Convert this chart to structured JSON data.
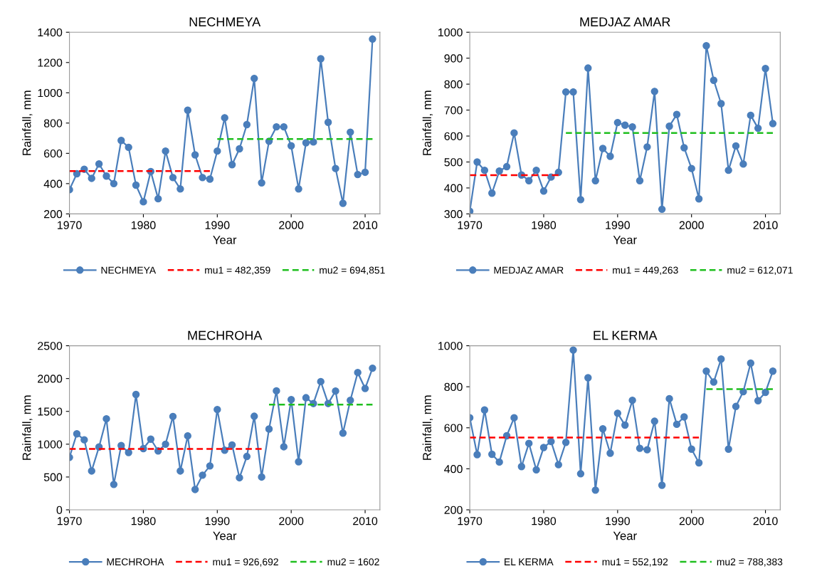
{
  "chart_data": [
    {
      "type": "line",
      "title": "NECHMEYA",
      "xlabel": "Year",
      "ylabel": "Rainfall, mm",
      "xlim": [
        1970,
        2012
      ],
      "xticks": [
        1970,
        1980,
        1990,
        2000,
        2010
      ],
      "ylim": [
        200,
        1400
      ],
      "yticks": [
        200,
        400,
        600,
        800,
        1000,
        1200,
        1400
      ],
      "grid": false,
      "legend": "bottom",
      "x": [
        1970,
        1971,
        1972,
        1973,
        1974,
        1975,
        1976,
        1977,
        1978,
        1979,
        1980,
        1981,
        1982,
        1983,
        1984,
        1985,
        1986,
        1987,
        1988,
        1989,
        1990,
        1991,
        1992,
        1993,
        1994,
        1995,
        1996,
        1997,
        1998,
        1999,
        2000,
        2001,
        2002,
        2003,
        2004,
        2005,
        2006,
        2007,
        2008,
        2009,
        2010,
        2011
      ],
      "series": [
        {
          "name": "NECHMEYA",
          "color": "#4a7ebb",
          "marker": "circle",
          "line_style": "solid",
          "values": [
            360,
            465,
            495,
            435,
            530,
            450,
            400,
            685,
            640,
            390,
            280,
            480,
            300,
            615,
            440,
            365,
            885,
            590,
            440,
            430,
            615,
            835,
            525,
            630,
            790,
            1095,
            405,
            680,
            775,
            775,
            650,
            365,
            670,
            675,
            1225,
            805,
            500,
            270,
            740,
            460,
            475,
            1355
          ]
        },
        {
          "name": "mu1 = 482,359",
          "color": "#ff0000",
          "marker": "none",
          "line_style": "dashed",
          "x": [
            1970,
            1989
          ],
          "values": [
            482.359,
            482.359
          ]
        },
        {
          "name": "mu2 = 694,851",
          "color": "#1fbf1f",
          "marker": "none",
          "line_style": "dashed",
          "x": [
            1990,
            2011
          ],
          "values": [
            694.851,
            694.851
          ]
        }
      ]
    },
    {
      "type": "line",
      "title": "MEDJAZ AMAR",
      "xlabel": "Year",
      "ylabel": "Rainfall, mm",
      "xlim": [
        1970,
        2012
      ],
      "xticks": [
        1970,
        1980,
        1990,
        2000,
        2010
      ],
      "ylim": [
        300,
        1000
      ],
      "yticks": [
        300,
        400,
        500,
        600,
        700,
        800,
        900,
        1000
      ],
      "grid": false,
      "legend": "bottom",
      "x": [
        1970,
        1971,
        1972,
        1973,
        1974,
        1975,
        1976,
        1977,
        1978,
        1979,
        1980,
        1981,
        1982,
        1983,
        1984,
        1985,
        1986,
        1987,
        1988,
        1989,
        1990,
        1991,
        1992,
        1993,
        1994,
        1995,
        1996,
        1997,
        1998,
        1999,
        2000,
        2001,
        2002,
        2003,
        2004,
        2005,
        2006,
        2007,
        2008,
        2009,
        2010,
        2011
      ],
      "series": [
        {
          "name": "MEDJAZ AMAR",
          "color": "#4a7ebb",
          "marker": "circle",
          "line_style": "solid",
          "values": [
            310,
            500,
            468,
            380,
            465,
            482,
            612,
            450,
            428,
            468,
            388,
            442,
            460,
            770,
            770,
            355,
            862,
            428,
            552,
            522,
            652,
            642,
            635,
            428,
            558,
            772,
            318,
            638,
            683,
            555,
            475,
            358,
            948,
            815,
            725,
            468,
            562,
            492,
            680,
            630,
            860,
            648
          ]
        },
        {
          "name": "mu1 = 449,263",
          "color": "#ff0000",
          "marker": "none",
          "line_style": "dashed",
          "x": [
            1970,
            1982
          ],
          "values": [
            449.263,
            449.263
          ]
        },
        {
          "name": "mu2 = 612,071",
          "color": "#1fbf1f",
          "marker": "none",
          "line_style": "dashed",
          "x": [
            1983,
            2011
          ],
          "values": [
            612.071,
            612.071
          ]
        }
      ]
    },
    {
      "type": "line",
      "title": "MECHROHA",
      "xlabel": "Year",
      "ylabel": "Rainfall, mm",
      "xlim": [
        1970,
        2012
      ],
      "xticks": [
        1970,
        1980,
        1990,
        2000,
        2010
      ],
      "ylim": [
        0,
        2500
      ],
      "yticks": [
        0,
        500,
        1000,
        1500,
        2000,
        2500
      ],
      "grid": false,
      "legend": "bottom",
      "x": [
        1970,
        1971,
        1972,
        1973,
        1974,
        1975,
        1976,
        1977,
        1978,
        1979,
        1980,
        1981,
        1982,
        1983,
        1984,
        1985,
        1986,
        1987,
        1988,
        1989,
        1990,
        1991,
        1992,
        1993,
        1994,
        1995,
        1996,
        1997,
        1998,
        1999,
        2000,
        2001,
        2002,
        2003,
        2004,
        2005,
        2006,
        2007,
        2008,
        2009,
        2010,
        2011
      ],
      "series": [
        {
          "name": "MECHROHA",
          "color": "#4a7ebb",
          "marker": "circle",
          "line_style": "solid",
          "values": [
            799,
            1158,
            1067,
            592,
            958,
            1387,
            387,
            979,
            873,
            1757,
            933,
            1077,
            898,
            1000,
            1423,
            592,
            1127,
            310,
            528,
            669,
            1528,
            908,
            989,
            489,
            813,
            1426,
            500,
            1232,
            1813,
            961,
            1680,
            732,
            1708,
            1620,
            1954,
            1620,
            1810,
            1169,
            1669,
            2092,
            1849,
            2158
          ]
        },
        {
          "name": "mu1 = 926,692",
          "color": "#ff0000",
          "marker": "none",
          "line_style": "dashed",
          "x": [
            1970,
            1996
          ],
          "values": [
            926.692,
            926.692
          ]
        },
        {
          "name": "mu2 = 1602",
          "color": "#1fbf1f",
          "marker": "none",
          "line_style": "dashed",
          "x": [
            1997,
            2011
          ],
          "values": [
            1602,
            1602
          ]
        }
      ]
    },
    {
      "type": "line",
      "title": "EL KERMA",
      "xlabel": "Year",
      "ylabel": "Rainfall, mm",
      "xlim": [
        1970,
        2012
      ],
      "xticks": [
        1970,
        1980,
        1990,
        2000,
        2010
      ],
      "ylim": [
        200,
        1000
      ],
      "yticks": [
        200,
        400,
        600,
        800,
        1000
      ],
      "grid": false,
      "legend": "bottom",
      "x": [
        1970,
        1971,
        1972,
        1973,
        1974,
        1975,
        1976,
        1977,
        1978,
        1979,
        1980,
        1981,
        1982,
        1983,
        1984,
        1985,
        1986,
        1987,
        1988,
        1989,
        1990,
        1991,
        1992,
        1993,
        1994,
        1995,
        1996,
        1997,
        1998,
        1999,
        2000,
        2001,
        2002,
        2003,
        2004,
        2005,
        2006,
        2007,
        2008,
        2009,
        2010,
        2011
      ],
      "series": [
        {
          "name": "EL KERMA",
          "color": "#4a7ebb",
          "marker": "circle",
          "line_style": "solid",
          "values": [
            649,
            469,
            687,
            471,
            433,
            561,
            649,
            411,
            524,
            395,
            504,
            533,
            420,
            529,
            979,
            376,
            844,
            296,
            595,
            476,
            671,
            613,
            734,
            500,
            493,
            632,
            320,
            742,
            617,
            653,
            496,
            429,
            876,
            823,
            935,
            496,
            704,
            776,
            915,
            732,
            773,
            876
          ]
        },
        {
          "name": "mu1 = 552,192",
          "color": "#ff0000",
          "marker": "none",
          "line_style": "dashed",
          "x": [
            1970,
            2001
          ],
          "values": [
            552.192,
            552.192
          ]
        },
        {
          "name": "mu2 = 788,383",
          "color": "#1fbf1f",
          "marker": "none",
          "line_style": "dashed",
          "x": [
            2002,
            2011
          ],
          "values": [
            788.383,
            788.383
          ]
        }
      ]
    }
  ]
}
